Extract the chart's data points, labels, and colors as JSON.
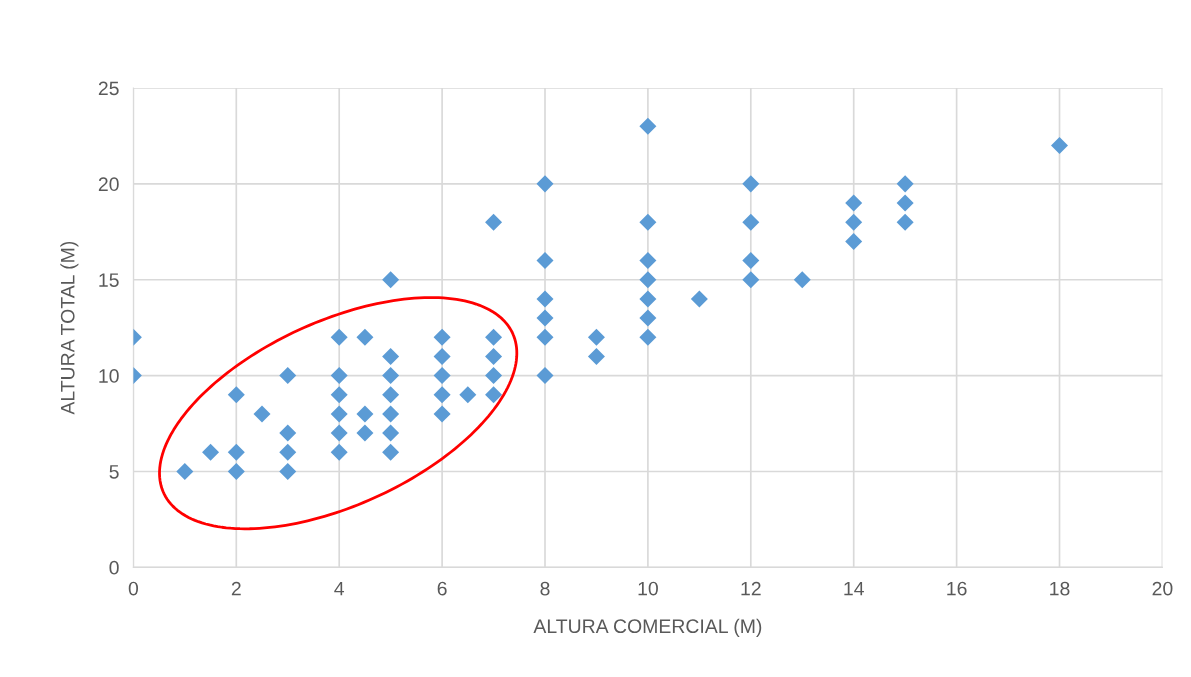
{
  "chart_data": {
    "type": "scatter",
    "xlabel": "ALTURA COMERCIAL (M)",
    "ylabel": "ALTURA TOTAL (M)",
    "series": [
      {
        "color": "#5b9bd5",
        "x": [
          0,
          0,
          1,
          1.5,
          2,
          2,
          2,
          2.5,
          3,
          3,
          3,
          3,
          4,
          4,
          4,
          4,
          4,
          4,
          4.5,
          4.5,
          4.5,
          5,
          5,
          5,
          5,
          5,
          5,
          5,
          6,
          6,
          6,
          6,
          6,
          6.5,
          7,
          7,
          7,
          7,
          7,
          8,
          8,
          8,
          8,
          8,
          8,
          9,
          9,
          10,
          10,
          10,
          10,
          10,
          10,
          10,
          11,
          12,
          12,
          12,
          12,
          13,
          14,
          14,
          14,
          15,
          15,
          15,
          18
        ],
        "values": [
          12,
          10,
          5,
          6,
          9,
          6,
          5,
          8,
          10,
          7,
          6,
          5,
          12,
          10,
          9,
          8,
          7,
          6,
          12,
          8,
          7,
          15,
          11,
          10,
          9,
          8,
          7,
          6,
          12,
          11,
          10,
          9,
          8,
          9,
          18,
          12,
          11,
          10,
          9,
          20,
          16,
          14,
          13,
          12,
          10,
          12,
          11,
          23,
          18,
          16,
          15,
          14,
          13,
          12,
          14,
          20,
          18,
          16,
          15,
          15,
          19,
          18,
          17,
          20,
          19,
          18,
          22
        ]
      }
    ],
    "xlim": [
      0,
      20
    ],
    "xticks": [
      0,
      2,
      4,
      6,
      8,
      10,
      12,
      14,
      16,
      18,
      20
    ],
    "ylim": [
      0,
      25
    ],
    "yticks": [
      0,
      5,
      10,
      15,
      20,
      25
    ],
    "grid": true,
    "marker": "diamond",
    "legend": false
  }
}
